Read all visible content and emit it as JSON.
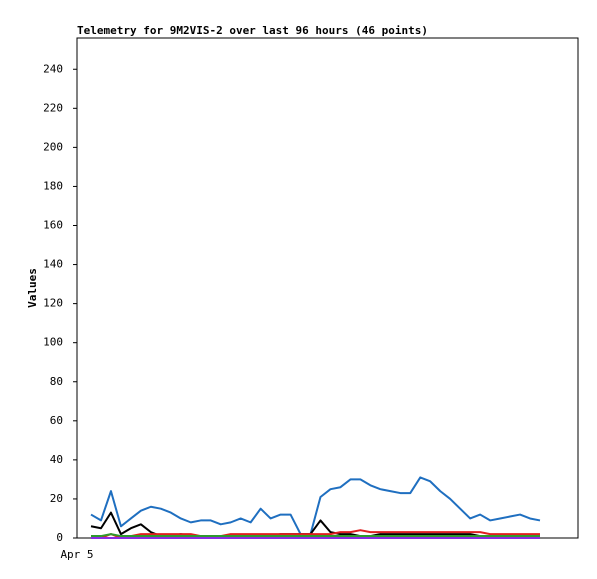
{
  "chart_data": {
    "type": "line",
    "title": "Telemetry for 9M2VIS-2 over last 96 hours (46 points)",
    "y_label": "Values",
    "x_tick_labels": [
      "Apr 5"
    ],
    "ylim": [
      0,
      256
    ],
    "yticks": [
      0,
      20,
      40,
      60,
      80,
      100,
      120,
      140,
      160,
      180,
      200,
      220,
      240
    ],
    "grid": false,
    "series": [
      {
        "color": "#1f6fc0",
        "values": [
          12,
          9,
          24,
          6,
          10,
          14,
          16,
          15,
          13,
          10,
          8,
          9,
          9,
          7,
          8,
          10,
          8,
          15,
          10,
          12,
          12,
          2,
          2,
          21,
          25,
          26,
          30,
          30,
          27,
          25,
          24,
          23,
          23,
          31,
          29,
          24,
          20,
          15,
          10,
          12,
          9,
          10,
          11,
          12,
          10,
          9
        ]
      },
      {
        "color": "#000000",
        "values": [
          6,
          5,
          13,
          2,
          5,
          7,
          3,
          1,
          1,
          2,
          1,
          1,
          1,
          1,
          1,
          1,
          1,
          1,
          1,
          2,
          2,
          2,
          2,
          9,
          3,
          2,
          2,
          1,
          1,
          2,
          2,
          2,
          2,
          2,
          2,
          2,
          2,
          2,
          2,
          1,
          1,
          1,
          1,
          1,
          1,
          1
        ]
      },
      {
        "color": "#e02020",
        "values": [
          0,
          0,
          2,
          0,
          1,
          2,
          2,
          2,
          2,
          2,
          2,
          1,
          1,
          1,
          2,
          2,
          2,
          2,
          2,
          2,
          2,
          2,
          2,
          2,
          2,
          3,
          3,
          4,
          3,
          3,
          3,
          3,
          3,
          3,
          3,
          3,
          3,
          3,
          3,
          3,
          2,
          2,
          2,
          2,
          2,
          2
        ]
      },
      {
        "color": "#2e9a2e",
        "values": [
          1,
          1,
          2,
          1,
          1,
          1,
          1,
          1,
          1,
          1,
          1,
          1,
          1,
          1,
          1,
          1,
          1,
          1,
          1,
          1,
          1,
          1,
          1,
          1,
          1,
          1,
          1,
          1,
          1,
          1,
          1,
          1,
          1,
          1,
          1,
          1,
          1,
          1,
          1,
          1,
          1,
          1,
          1,
          1,
          1,
          1
        ]
      },
      {
        "color": "#8a2be2",
        "values": [
          0,
          0,
          0,
          0,
          0,
          0,
          0,
          0,
          0,
          0,
          0,
          0,
          0,
          0,
          0,
          0,
          0,
          0,
          0,
          0,
          0,
          0,
          0,
          0,
          0,
          0,
          0,
          0,
          0,
          0,
          0,
          0,
          0,
          0,
          0,
          0,
          0,
          0,
          0,
          0,
          0,
          0,
          0,
          0,
          0,
          0
        ]
      }
    ]
  }
}
